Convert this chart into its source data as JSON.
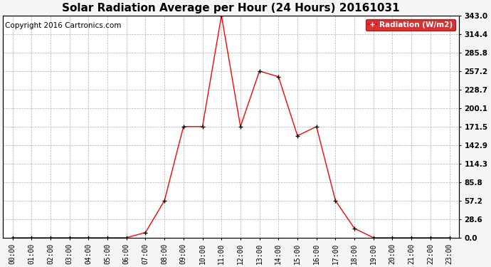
{
  "title": "Solar Radiation Average per Hour (24 Hours) 20161031",
  "copyright": "Copyright 2016 Cartronics.com",
  "legend_label": "Radiation (W/m2)",
  "hours": [
    0,
    1,
    2,
    3,
    4,
    5,
    6,
    7,
    8,
    9,
    10,
    11,
    12,
    13,
    14,
    15,
    16,
    17,
    18,
    19,
    20,
    21,
    22,
    23
  ],
  "values": [
    0.0,
    0.0,
    0.0,
    0.0,
    0.0,
    0.0,
    0.0,
    8.0,
    57.2,
    171.5,
    171.5,
    343.0,
    171.5,
    257.2,
    248.5,
    157.3,
    171.5,
    57.2,
    14.3,
    0.0,
    0.0,
    0.0,
    0.0,
    0.0
  ],
  "yticks": [
    0.0,
    28.6,
    57.2,
    85.8,
    114.3,
    142.9,
    171.5,
    200.1,
    228.7,
    257.2,
    285.8,
    314.4,
    343.0
  ],
  "ymax": 343.0,
  "line_color": "red",
  "marker": "+",
  "marker_color": "black",
  "marker_size": 5,
  "bg_color": "#f5f5f5",
  "plot_bg_color": "#ffffff",
  "grid_color": "#b0b0b0",
  "title_fontsize": 11,
  "copyright_fontsize": 7.5,
  "tick_fontsize": 7,
  "ytick_fontsize": 7.5,
  "legend_bg_color": "#cc0000",
  "legend_text_color": "#ffffff",
  "linewidth": 1.0
}
